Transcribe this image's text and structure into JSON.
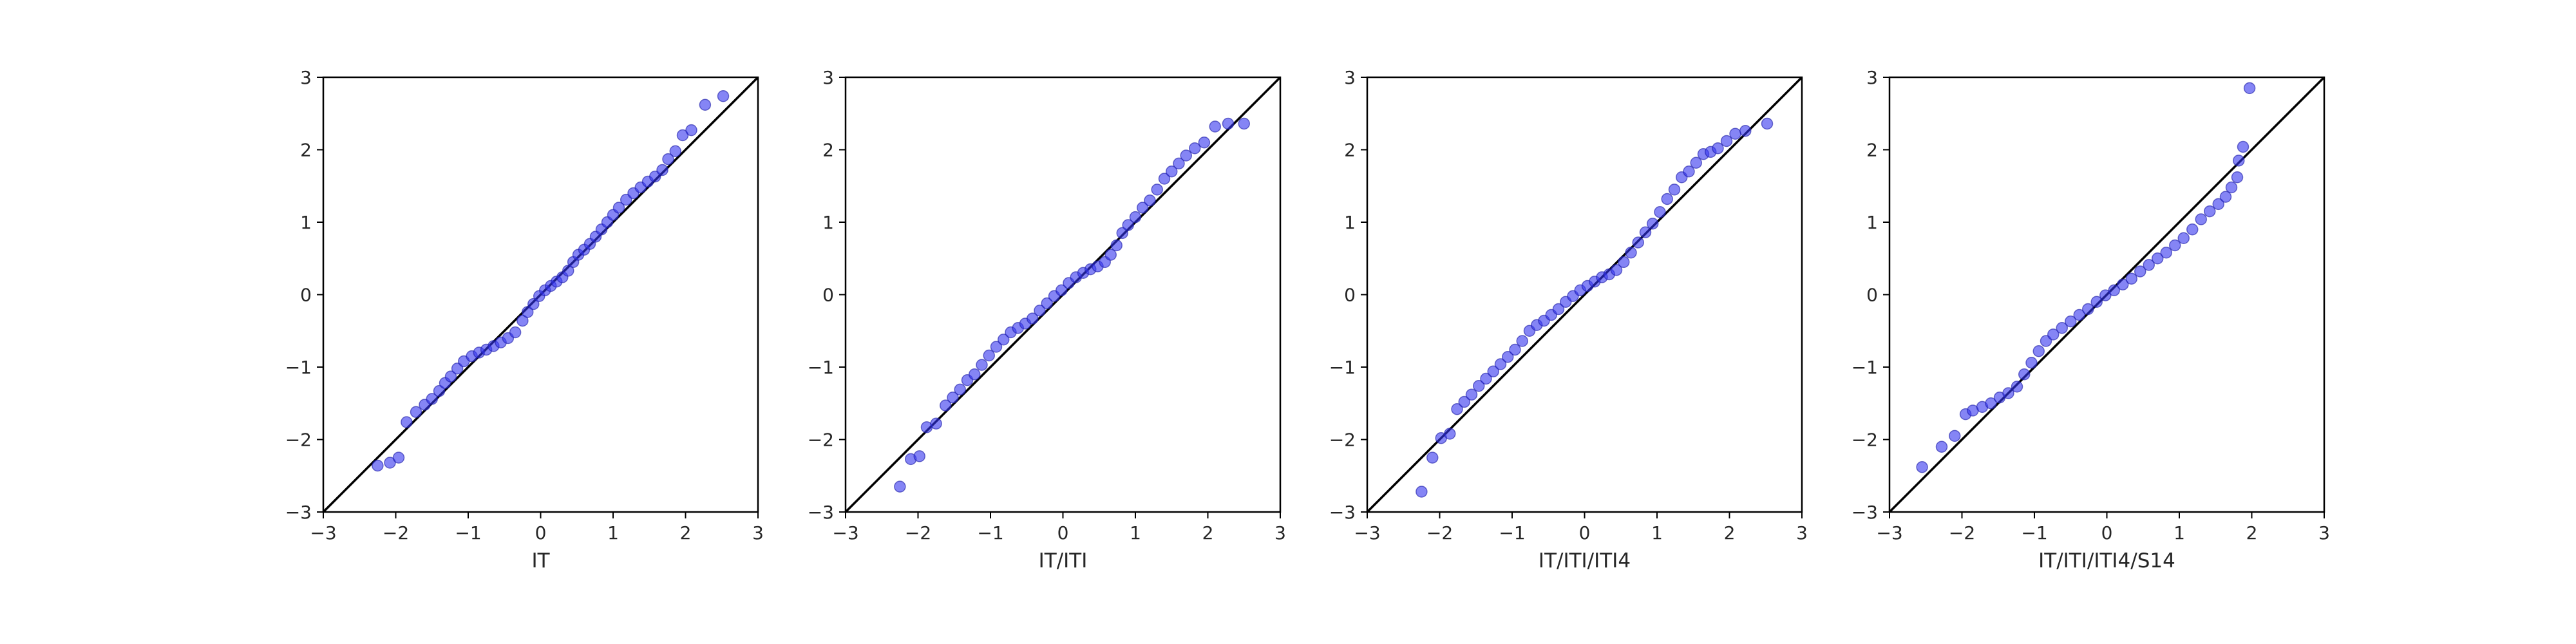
{
  "chart_data": [
    {
      "type": "scatter",
      "xlabel": "IT",
      "ylabel": "",
      "xlim": [
        -3,
        3
      ],
      "ylim": [
        -3,
        3
      ],
      "xticks": [
        "-3",
        "-2",
        "-1",
        "0",
        "1",
        "2",
        "3"
      ],
      "yticks": [
        "-3",
        "-2",
        "-1",
        "0",
        "1",
        "2",
        "3"
      ],
      "reference_line": "y = x",
      "grid": false,
      "color": "#3333ee",
      "points": [
        [
          -2.25,
          -2.36
        ],
        [
          -2.08,
          -2.32
        ],
        [
          -1.96,
          -2.25
        ],
        [
          -1.85,
          -1.76
        ],
        [
          -1.72,
          -1.62
        ],
        [
          -1.6,
          -1.52
        ],
        [
          -1.5,
          -1.44
        ],
        [
          -1.4,
          -1.33
        ],
        [
          -1.32,
          -1.22
        ],
        [
          -1.24,
          -1.13
        ],
        [
          -1.15,
          -1.02
        ],
        [
          -1.06,
          -0.92
        ],
        [
          -0.95,
          -0.85
        ],
        [
          -0.85,
          -0.8
        ],
        [
          -0.75,
          -0.76
        ],
        [
          -0.65,
          -0.71
        ],
        [
          -0.55,
          -0.66
        ],
        [
          -0.45,
          -0.6
        ],
        [
          -0.35,
          -0.52
        ],
        [
          -0.25,
          -0.36
        ],
        [
          -0.18,
          -0.24
        ],
        [
          -0.1,
          -0.13
        ],
        [
          -0.02,
          -0.02
        ],
        [
          0.06,
          0.06
        ],
        [
          0.14,
          0.12
        ],
        [
          0.22,
          0.18
        ],
        [
          0.3,
          0.24
        ],
        [
          0.38,
          0.33
        ],
        [
          0.45,
          0.45
        ],
        [
          0.52,
          0.55
        ],
        [
          0.6,
          0.62
        ],
        [
          0.68,
          0.7
        ],
        [
          0.76,
          0.8
        ],
        [
          0.84,
          0.9
        ],
        [
          0.92,
          1.0
        ],
        [
          1.0,
          1.1
        ],
        [
          1.08,
          1.2
        ],
        [
          1.18,
          1.31
        ],
        [
          1.28,
          1.4
        ],
        [
          1.38,
          1.48
        ],
        [
          1.48,
          1.56
        ],
        [
          1.58,
          1.63
        ],
        [
          1.68,
          1.72
        ],
        [
          1.76,
          1.87
        ],
        [
          1.86,
          1.98
        ],
        [
          1.96,
          2.2
        ],
        [
          2.08,
          2.27
        ],
        [
          2.27,
          2.62
        ],
        [
          2.52,
          2.74
        ]
      ]
    },
    {
      "type": "scatter",
      "xlabel": "IT/ITI",
      "ylabel": "",
      "xlim": [
        -3,
        3
      ],
      "ylim": [
        -3,
        3
      ],
      "xticks": [
        "-3",
        "-2",
        "-1",
        "0",
        "1",
        "2",
        "3"
      ],
      "yticks": [
        "-3",
        "-2",
        "-1",
        "0",
        "1",
        "2",
        "3"
      ],
      "reference_line": "y = x",
      "grid": false,
      "color": "#3333ee",
      "points": [
        [
          -2.25,
          -2.65
        ],
        [
          -2.1,
          -2.27
        ],
        [
          -1.98,
          -2.23
        ],
        [
          -1.88,
          -1.83
        ],
        [
          -1.75,
          -1.78
        ],
        [
          -1.62,
          -1.53
        ],
        [
          -1.52,
          -1.42
        ],
        [
          -1.42,
          -1.31
        ],
        [
          -1.32,
          -1.18
        ],
        [
          -1.22,
          -1.1
        ],
        [
          -1.12,
          -0.97
        ],
        [
          -1.02,
          -0.84
        ],
        [
          -0.92,
          -0.72
        ],
        [
          -0.82,
          -0.62
        ],
        [
          -0.72,
          -0.52
        ],
        [
          -0.62,
          -0.46
        ],
        [
          -0.52,
          -0.4
        ],
        [
          -0.42,
          -0.33
        ],
        [
          -0.32,
          -0.22
        ],
        [
          -0.22,
          -0.12
        ],
        [
          -0.12,
          -0.02
        ],
        [
          -0.02,
          0.06
        ],
        [
          0.08,
          0.16
        ],
        [
          0.18,
          0.24
        ],
        [
          0.28,
          0.3
        ],
        [
          0.38,
          0.35
        ],
        [
          0.48,
          0.39
        ],
        [
          0.58,
          0.45
        ],
        [
          0.66,
          0.55
        ],
        [
          0.74,
          0.68
        ],
        [
          0.82,
          0.85
        ],
        [
          0.9,
          0.96
        ],
        [
          1.0,
          1.07
        ],
        [
          1.1,
          1.2
        ],
        [
          1.2,
          1.3
        ],
        [
          1.3,
          1.45
        ],
        [
          1.4,
          1.6
        ],
        [
          1.5,
          1.7
        ],
        [
          1.6,
          1.81
        ],
        [
          1.7,
          1.92
        ],
        [
          1.82,
          2.02
        ],
        [
          1.95,
          2.1
        ],
        [
          2.1,
          2.32
        ],
        [
          2.28,
          2.36
        ],
        [
          2.5,
          2.36
        ]
      ]
    },
    {
      "type": "scatter",
      "xlabel": "IT/ITI/ITI4",
      "ylabel": "",
      "xlim": [
        -3,
        3
      ],
      "ylim": [
        -3,
        3
      ],
      "xticks": [
        "-3",
        "-2",
        "-1",
        "0",
        "1",
        "2",
        "3"
      ],
      "yticks": [
        "-3",
        "-2",
        "-1",
        "0",
        "1",
        "2",
        "3"
      ],
      "reference_line": "y = x",
      "grid": false,
      "color": "#3333ee",
      "points": [
        [
          -2.25,
          -2.72
        ],
        [
          -2.1,
          -2.25
        ],
        [
          -1.98,
          -1.98
        ],
        [
          -1.86,
          -1.92
        ],
        [
          -1.76,
          -1.58
        ],
        [
          -1.66,
          -1.48
        ],
        [
          -1.56,
          -1.38
        ],
        [
          -1.46,
          -1.26
        ],
        [
          -1.36,
          -1.16
        ],
        [
          -1.26,
          -1.06
        ],
        [
          -1.16,
          -0.96
        ],
        [
          -1.06,
          -0.86
        ],
        [
          -0.96,
          -0.76
        ],
        [
          -0.86,
          -0.64
        ],
        [
          -0.76,
          -0.5
        ],
        [
          -0.66,
          -0.42
        ],
        [
          -0.56,
          -0.36
        ],
        [
          -0.46,
          -0.28
        ],
        [
          -0.36,
          -0.2
        ],
        [
          -0.26,
          -0.1
        ],
        [
          -0.16,
          -0.02
        ],
        [
          -0.06,
          0.06
        ],
        [
          0.04,
          0.12
        ],
        [
          0.14,
          0.18
        ],
        [
          0.24,
          0.24
        ],
        [
          0.34,
          0.28
        ],
        [
          0.44,
          0.34
        ],
        [
          0.54,
          0.45
        ],
        [
          0.64,
          0.58
        ],
        [
          0.74,
          0.72
        ],
        [
          0.84,
          0.86
        ],
        [
          0.94,
          0.98
        ],
        [
          1.04,
          1.14
        ],
        [
          1.14,
          1.32
        ],
        [
          1.24,
          1.45
        ],
        [
          1.34,
          1.62
        ],
        [
          1.44,
          1.7
        ],
        [
          1.54,
          1.82
        ],
        [
          1.64,
          1.94
        ],
        [
          1.74,
          1.97
        ],
        [
          1.84,
          2.02
        ],
        [
          1.96,
          2.12
        ],
        [
          2.08,
          2.22
        ],
        [
          2.22,
          2.26
        ],
        [
          2.52,
          2.36
        ]
      ]
    },
    {
      "type": "scatter",
      "xlabel": "IT/ITI/ITI4/S14",
      "ylabel": "",
      "xlim": [
        -3,
        3
      ],
      "ylim": [
        -3,
        3
      ],
      "xticks": [
        "-3",
        "-2",
        "-1",
        "0",
        "1",
        "2",
        "3"
      ],
      "yticks": [
        "-3",
        "-2",
        "-1",
        "0",
        "1",
        "2",
        "3"
      ],
      "reference_line": "y = x",
      "grid": false,
      "color": "#3333ee",
      "points": [
        [
          -2.55,
          -2.38
        ],
        [
          -2.28,
          -2.1
        ],
        [
          -2.1,
          -1.95
        ],
        [
          -1.95,
          -1.65
        ],
        [
          -1.85,
          -1.6
        ],
        [
          -1.72,
          -1.55
        ],
        [
          -1.6,
          -1.5
        ],
        [
          -1.48,
          -1.42
        ],
        [
          -1.36,
          -1.36
        ],
        [
          -1.24,
          -1.27
        ],
        [
          -1.14,
          -1.1
        ],
        [
          -1.04,
          -0.94
        ],
        [
          -0.94,
          -0.78
        ],
        [
          -0.84,
          -0.64
        ],
        [
          -0.74,
          -0.55
        ],
        [
          -0.62,
          -0.46
        ],
        [
          -0.5,
          -0.37
        ],
        [
          -0.38,
          -0.28
        ],
        [
          -0.26,
          -0.2
        ],
        [
          -0.14,
          -0.1
        ],
        [
          -0.02,
          -0.01
        ],
        [
          0.1,
          0.06
        ],
        [
          0.22,
          0.14
        ],
        [
          0.34,
          0.22
        ],
        [
          0.46,
          0.32
        ],
        [
          0.58,
          0.41
        ],
        [
          0.7,
          0.5
        ],
        [
          0.82,
          0.58
        ],
        [
          0.94,
          0.68
        ],
        [
          1.06,
          0.78
        ],
        [
          1.18,
          0.9
        ],
        [
          1.3,
          1.04
        ],
        [
          1.42,
          1.15
        ],
        [
          1.54,
          1.25
        ],
        [
          1.64,
          1.35
        ],
        [
          1.72,
          1.48
        ],
        [
          1.8,
          1.62
        ],
        [
          1.82,
          1.85
        ],
        [
          1.88,
          2.04
        ],
        [
          1.97,
          2.85
        ]
      ]
    }
  ]
}
